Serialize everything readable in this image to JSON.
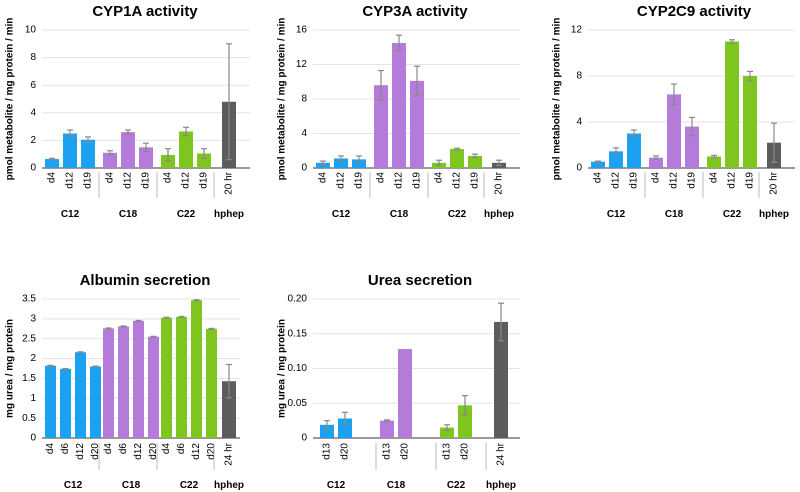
{
  "colors": {
    "C12": "#1aa2f0",
    "C18": "#b57bdb",
    "C22": "#7ec51f",
    "hphep": "#5c5c5c",
    "error": "#888888"
  },
  "chart_data": [
    {
      "type": "bar",
      "title": "CYP1A activity",
      "ylabel": "pmol metabolite / mg protein / min",
      "ylim": [
        0,
        10
      ],
      "yticks": [
        "0",
        "2",
        "4",
        "6",
        "8",
        "10"
      ],
      "groups": [
        {
          "name": "C12",
          "color_key": "C12",
          "categories": [
            "d4",
            "d12",
            "d19"
          ],
          "values": [
            0.65,
            2.5,
            2.05
          ],
          "errors": [
            0.05,
            0.25,
            0.2
          ]
        },
        {
          "name": "C18",
          "color_key": "C18",
          "categories": [
            "d4",
            "d12",
            "d19"
          ],
          "values": [
            1.1,
            2.6,
            1.5
          ],
          "errors": [
            0.15,
            0.15,
            0.3
          ]
        },
        {
          "name": "C22",
          "color_key": "C22",
          "categories": [
            "d4",
            "d12",
            "d19"
          ],
          "values": [
            0.95,
            2.65,
            1.05
          ],
          "errors": [
            0.45,
            0.3,
            0.35
          ]
        },
        {
          "name": "hphep",
          "color_key": "hphep",
          "categories": [
            "20 hr"
          ],
          "values": [
            4.8
          ],
          "errors": [
            4.2
          ]
        }
      ]
    },
    {
      "type": "bar",
      "title": "CYP3A activity",
      "ylabel": "pmol metabolite / mg protein / min",
      "ylim": [
        0,
        16
      ],
      "yticks": [
        "0",
        "4",
        "8",
        "12",
        "16"
      ],
      "groups": [
        {
          "name": "C12",
          "color_key": "C12",
          "categories": [
            "d4",
            "d12",
            "d19"
          ],
          "values": [
            0.6,
            1.1,
            1.0
          ],
          "errors": [
            0.2,
            0.3,
            0.4
          ]
        },
        {
          "name": "C18",
          "color_key": "C18",
          "categories": [
            "d4",
            "d12",
            "d19"
          ],
          "values": [
            9.6,
            14.5,
            10.1
          ],
          "errors": [
            1.7,
            0.9,
            1.7
          ]
        },
        {
          "name": "C22",
          "color_key": "C22",
          "categories": [
            "d4",
            "d12",
            "d19"
          ],
          "values": [
            0.6,
            2.2,
            1.4
          ],
          "errors": [
            0.3,
            0.1,
            0.2
          ]
        },
        {
          "name": "hphep",
          "color_key": "hphep",
          "categories": [
            "20 hr"
          ],
          "values": [
            0.6
          ],
          "errors": [
            0.3
          ]
        }
      ]
    },
    {
      "type": "bar",
      "title": "CYP2C9 activity",
      "ylabel": "pmol metabolite / mg protein / min",
      "ylim": [
        0,
        12
      ],
      "yticks": [
        "0",
        "4",
        "8",
        "12"
      ],
      "groups": [
        {
          "name": "C12",
          "color_key": "C12",
          "categories": [
            "d4",
            "d12",
            "d19"
          ],
          "values": [
            0.55,
            1.45,
            3.0
          ],
          "errors": [
            0.05,
            0.3,
            0.3
          ]
        },
        {
          "name": "C18",
          "color_key": "C18",
          "categories": [
            "d4",
            "d12",
            "d19"
          ],
          "values": [
            0.9,
            6.4,
            3.6
          ],
          "errors": [
            0.15,
            0.9,
            0.8
          ]
        },
        {
          "name": "C22",
          "color_key": "C22",
          "categories": [
            "d4",
            "d12",
            "d19"
          ],
          "values": [
            1.0,
            11.0,
            8.0
          ],
          "errors": [
            0.1,
            0.15,
            0.4
          ]
        },
        {
          "name": "hphep",
          "color_key": "hphep",
          "categories": [
            "20 hr"
          ],
          "values": [
            2.2
          ],
          "errors": [
            1.7
          ]
        }
      ]
    },
    {
      "type": "bar",
      "title": "Albumin secretion",
      "ylabel": "mg urea / mg protein",
      "ylim": [
        0,
        3.5
      ],
      "yticks": [
        "0",
        "0.5",
        "1",
        "1.5",
        "2",
        "2.5",
        "3",
        "3.5"
      ],
      "groups": [
        {
          "name": "C12",
          "color_key": "C12",
          "categories": [
            "d4",
            "d6",
            "d12",
            "d20"
          ],
          "values": [
            1.82,
            1.74,
            2.16,
            1.8
          ],
          "errors": [
            0.01,
            0.01,
            0.01,
            0.01
          ]
        },
        {
          "name": "C18",
          "color_key": "C18",
          "categories": [
            "d4",
            "d6",
            "d12",
            "d20"
          ],
          "values": [
            2.76,
            2.81,
            2.95,
            2.55
          ],
          "errors": [
            0.01,
            0.01,
            0.01,
            0.01
          ]
        },
        {
          "name": "C22",
          "color_key": "C22",
          "categories": [
            "d4",
            "d6",
            "d12",
            "d20"
          ],
          "values": [
            3.03,
            3.05,
            3.47,
            2.75
          ],
          "errors": [
            0.01,
            0.01,
            0.01,
            0.01
          ]
        },
        {
          "name": "hphep",
          "color_key": "hphep",
          "categories": [
            "24 hr"
          ],
          "values": [
            1.43
          ],
          "errors": [
            0.42
          ]
        }
      ]
    },
    {
      "type": "bar",
      "title": "Urea secretion",
      "ylabel": "mg urea / mg protein",
      "ylim": [
        0,
        0.2
      ],
      "yticks": [
        "0",
        "0.05",
        "0.10",
        "0.15",
        "0.20"
      ],
      "groups": [
        {
          "name": "C12",
          "color_key": "C12",
          "categories": [
            "d13",
            "d20"
          ],
          "values": [
            0.019,
            0.028
          ],
          "errors": [
            0.006,
            0.009
          ]
        },
        {
          "name": "C18",
          "color_key": "C18",
          "categories": [
            "d13",
            "d20"
          ],
          "values": [
            0.025,
            0.128
          ],
          "errors": [
            0.001,
            0.0
          ]
        },
        {
          "name": "C22",
          "color_key": "C22",
          "categories": [
            "d13",
            "d20"
          ],
          "values": [
            0.015,
            0.047
          ],
          "errors": [
            0.004,
            0.014
          ]
        },
        {
          "name": "hphep",
          "color_key": "hphep",
          "categories": [
            "24 hr"
          ],
          "values": [
            0.167
          ],
          "errors": [
            0.027
          ]
        }
      ]
    }
  ]
}
